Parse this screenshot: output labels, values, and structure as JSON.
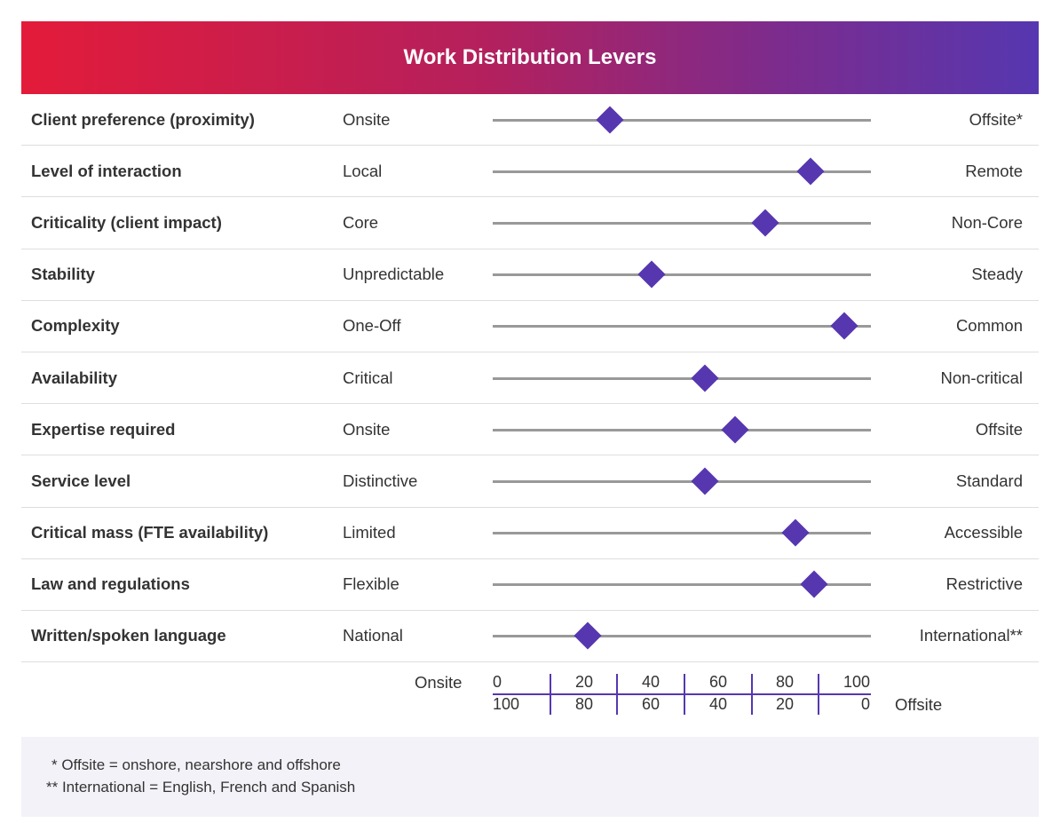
{
  "title": "Work Distribution Levers",
  "colors": {
    "accent": "#5637b0",
    "gradient_start": "#e31b3a",
    "gradient_end": "#5637b0"
  },
  "chart_data": {
    "type": "slider-scale",
    "xlim": [
      0,
      100
    ],
    "rows": [
      {
        "label": "Client preference (proximity)",
        "left": "Onsite",
        "right": "Offsite*",
        "value": 31
      },
      {
        "label": "Level of interaction",
        "left": "Local",
        "right": "Remote",
        "value": 84
      },
      {
        "label": "Criticality (client impact)",
        "left": "Core",
        "right": "Non-Core",
        "value": 72
      },
      {
        "label": "Stability",
        "left": "Unpredictable",
        "right": "Steady",
        "value": 42
      },
      {
        "label": "Complexity",
        "left": "One-Off",
        "right": "Common",
        "value": 93
      },
      {
        "label": "Availability",
        "left": "Critical",
        "right": "Non-critical",
        "value": 56
      },
      {
        "label": "Expertise required",
        "left": "Onsite",
        "right": "Offsite",
        "value": 64
      },
      {
        "label": "Service level",
        "left": "Distinctive",
        "right": "Standard",
        "value": 56
      },
      {
        "label": "Critical mass (FTE availability)",
        "left": "Limited",
        "right": "Accessible",
        "value": 80
      },
      {
        "label": "Law and regulations",
        "left": "Flexible",
        "right": "Restrictive",
        "value": 85
      },
      {
        "label": "Written/spoken language",
        "left": "National",
        "right": "International**",
        "value": 25
      }
    ],
    "scale": {
      "left_label": "Onsite",
      "right_label": "Offsite",
      "top_ticks": [
        "0",
        "20",
        "40",
        "60",
        "80",
        "100"
      ],
      "bottom_ticks": [
        "100",
        "80",
        "60",
        "40",
        "20",
        "0"
      ]
    }
  },
  "footnotes": [
    "* Offsite = onshore, nearshore and offshore",
    "** International  =  English, French and Spanish"
  ]
}
